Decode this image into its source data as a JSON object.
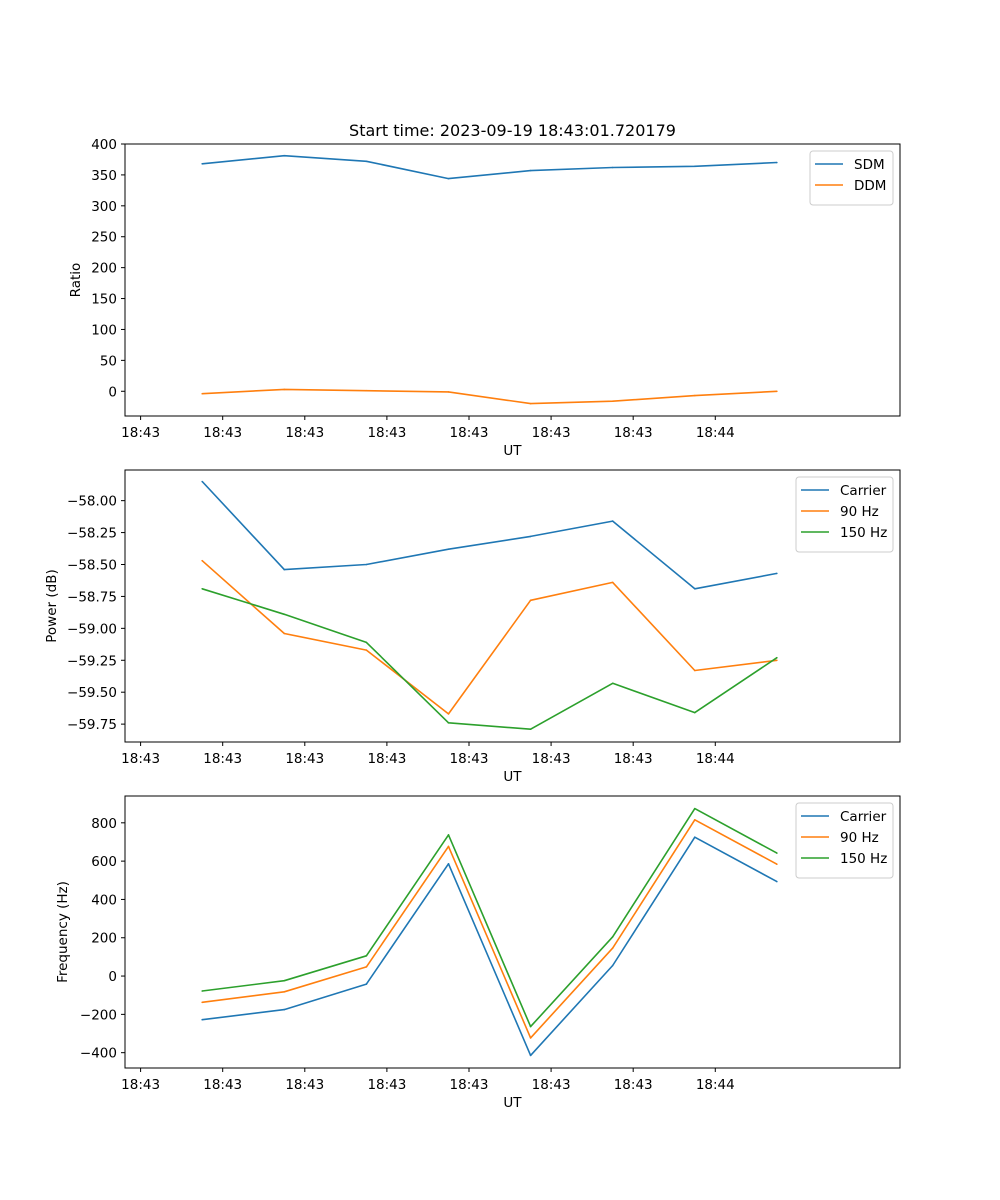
{
  "chart_data": [
    {
      "type": "line",
      "title": "Start time: 2023-09-19 18:43:01.720179",
      "xlabel": "UT",
      "ylabel": "Ratio",
      "xticks": [
        "18:43",
        "18:43",
        "18:43",
        "18:43",
        "18:43",
        "18:43",
        "18:43"
      ],
      "xticks_last": "18:44",
      "yticks": [
        "0",
        "50",
        "100",
        "150",
        "200",
        "250",
        "300",
        "350",
        "400"
      ],
      "ytick_values": [
        0,
        50,
        100,
        150,
        200,
        250,
        300,
        350,
        400
      ],
      "ylim": [
        -40,
        400
      ],
      "xlim": [
        -0.19,
        9.25
      ],
      "x": [
        0.75,
        1.75,
        2.75,
        3.75,
        4.75,
        5.75,
        6.75,
        7.75
      ],
      "series": [
        {
          "name": "SDM",
          "color": "#1f77b4",
          "values": [
            368,
            381,
            372,
            344,
            357,
            362,
            364,
            370
          ]
        },
        {
          "name": "DDM",
          "color": "#ff7f0e",
          "values": [
            -4,
            3,
            1,
            -1,
            -20,
            -16,
            -7,
            0
          ]
        }
      ],
      "legend": "upper-right"
    },
    {
      "type": "line",
      "title": "",
      "xlabel": "UT",
      "ylabel": "Power (dB)",
      "xticks": [
        "18:43",
        "18:43",
        "18:43",
        "18:43",
        "18:43",
        "18:43",
        "18:43"
      ],
      "xticks_last": "18:44",
      "yticks": [
        "−58.00",
        "−58.25",
        "−58.50",
        "−58.75",
        "−59.00",
        "−59.25",
        "−59.50",
        "−59.75"
      ],
      "ytick_values": [
        -58.0,
        -58.25,
        -58.5,
        -58.75,
        -59.0,
        -59.25,
        -59.5,
        -59.75
      ],
      "ylim": [
        -59.89,
        -57.76
      ],
      "xlim": [
        -0.19,
        9.25
      ],
      "x": [
        0.75,
        1.75,
        2.75,
        3.75,
        4.75,
        5.75,
        6.75,
        7.75
      ],
      "series": [
        {
          "name": "Carrier",
          "color": "#1f77b4",
          "values": [
            -57.85,
            -58.54,
            -58.5,
            -58.38,
            -58.28,
            -58.16,
            -58.69,
            -58.57
          ]
        },
        {
          "name": "90 Hz",
          "color": "#ff7f0e",
          "values": [
            -58.47,
            -59.04,
            -59.17,
            -59.67,
            -58.78,
            -58.64,
            -59.33,
            -59.25
          ]
        },
        {
          "name": "150 Hz",
          "color": "#2ca02c",
          "values": [
            -58.69,
            -58.89,
            -59.11,
            -59.74,
            -59.79,
            -59.43,
            -59.66,
            -59.23
          ]
        }
      ],
      "legend": "upper-right"
    },
    {
      "type": "line",
      "title": "",
      "xlabel": "UT",
      "ylabel": "Frequency (Hz)",
      "xticks": [
        "18:43",
        "18:43",
        "18:43",
        "18:43",
        "18:43",
        "18:43",
        "18:43"
      ],
      "xticks_last": "18:44",
      "yticks": [
        "−400",
        "−200",
        "0",
        "200",
        "400",
        "600",
        "800"
      ],
      "ytick_values": [
        -400,
        -200,
        0,
        200,
        400,
        600,
        800
      ],
      "ylim": [
        -480,
        940
      ],
      "xlim": [
        -0.19,
        9.25
      ],
      "x": [
        0.75,
        1.75,
        2.75,
        3.75,
        4.75,
        5.75,
        6.75,
        7.75
      ],
      "series": [
        {
          "name": "Carrier",
          "color": "#1f77b4",
          "values": [
            -228,
            -175,
            -42,
            586,
            -414,
            55,
            725,
            493
          ]
        },
        {
          "name": "90 Hz",
          "color": "#ff7f0e",
          "values": [
            -137,
            -82,
            48,
            677,
            -323,
            146,
            816,
            584
          ]
        },
        {
          "name": "150 Hz",
          "color": "#2ca02c",
          "values": [
            -78,
            -24,
            106,
            737,
            -264,
            205,
            874,
            642
          ]
        }
      ],
      "legend": "upper-right"
    }
  ]
}
